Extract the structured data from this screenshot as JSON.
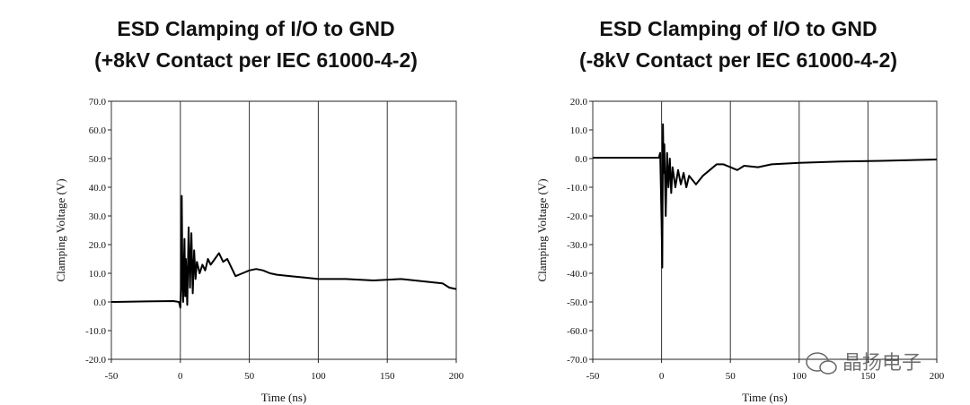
{
  "chart_data": [
    {
      "type": "line",
      "title": "ESD Clamping of I/O to GND",
      "subtitle": "(+8kV Contact per IEC 61000-4-2)",
      "x_label": "Time (ns)",
      "y_label": "Clamping Voltage (V)",
      "x": [
        -50,
        -25,
        -5,
        -1,
        0,
        0.5,
        1,
        1.5,
        2,
        3,
        3.5,
        4,
        5,
        6,
        7,
        8,
        9,
        10,
        11,
        12,
        14,
        16,
        18,
        20,
        22,
        25,
        28,
        31,
        34,
        37,
        40,
        45,
        50,
        55,
        60,
        65,
        70,
        80,
        90,
        100,
        120,
        140,
        160,
        180,
        190,
        195,
        200
      ],
      "values": [
        0,
        0.2,
        0.3,
        0,
        -2,
        5,
        37,
        10,
        0,
        22,
        2,
        15,
        -1,
        26,
        5,
        24,
        3,
        18,
        8,
        14,
        10,
        13,
        11,
        15,
        13,
        15,
        17,
        14,
        15,
        12,
        9,
        10,
        11,
        11.5,
        11,
        10,
        9.5,
        9,
        8.5,
        8,
        8,
        7.5,
        8,
        7,
        6.5,
        5,
        4.5
      ],
      "color": "#000000",
      "xlim": [
        -50,
        200
      ],
      "xticks": [
        -50,
        0,
        50,
        100,
        150,
        200
      ],
      "ylim": [
        -20,
        70
      ],
      "yticks": [
        {
          "value": 70,
          "label": "70.0"
        },
        {
          "value": 60,
          "label": "60.0"
        },
        {
          "value": 50,
          "label": "50.0"
        },
        {
          "value": 40,
          "label": "40.0"
        },
        {
          "value": 30,
          "label": "30.0"
        },
        {
          "value": 20,
          "label": "20.0"
        },
        {
          "value": 10,
          "label": "10.0"
        },
        {
          "value": 0,
          "label": "0.0"
        },
        {
          "value": -10,
          "label": "-10.0"
        },
        {
          "value": -20,
          "label": "-20.0"
        }
      ],
      "grid": "x"
    },
    {
      "type": "line",
      "title": "ESD Clamping of I/O to GND",
      "subtitle": "(-8kV Contact per IEC 61000-4-2)",
      "x_label": "Time (ns)",
      "y_label": "Clamping Voltage (V)",
      "x": [
        -50,
        -2,
        -1,
        0,
        0.5,
        1,
        1.5,
        2,
        3,
        4,
        5,
        6,
        7,
        8,
        10,
        12,
        14,
        16,
        18,
        20,
        25,
        30,
        35,
        40,
        45,
        50,
        55,
        60,
        70,
        80,
        100,
        130,
        160,
        200
      ],
      "values": [
        0.3,
        0.3,
        2,
        -22,
        -38,
        12,
        -5,
        5,
        -20,
        2,
        -10,
        0,
        -12,
        -3,
        -10,
        -4,
        -9,
        -5,
        -10,
        -6,
        -9,
        -6,
        -4,
        -2,
        -2,
        -3,
        -4,
        -2.5,
        -3,
        -2,
        -1.5,
        -1,
        -0.8,
        -0.3
      ],
      "color": "#000000",
      "xlim": [
        -50,
        200
      ],
      "xticks": [
        -50,
        0,
        50,
        100,
        150,
        200
      ],
      "ylim": [
        -70,
        20
      ],
      "yticks": [
        {
          "value": 20,
          "label": "20.0"
        },
        {
          "value": 10,
          "label": "10.0"
        },
        {
          "value": 0,
          "label": "0.0"
        },
        {
          "value": -10,
          "label": "-10.0"
        },
        {
          "value": -20,
          "label": "-20.0"
        },
        {
          "value": -30,
          "label": "-30.0"
        },
        {
          "value": -40,
          "label": "-40.0"
        },
        {
          "value": -50,
          "label": "-50.0"
        },
        {
          "value": -60,
          "label": "-60.0"
        },
        {
          "value": -70,
          "label": "-70.0"
        }
      ],
      "grid": "x"
    }
  ],
  "watermark": {
    "text": "晶扬电子"
  }
}
